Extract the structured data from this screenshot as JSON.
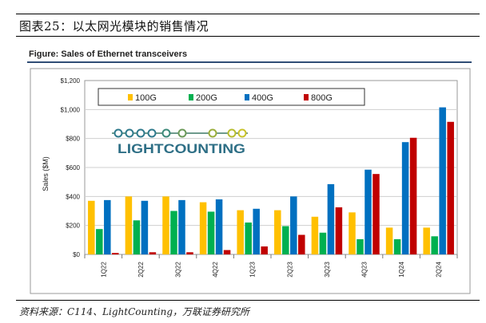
{
  "doc_title": "图表25：以太网光模块的销售情况",
  "figure_title": "Figure: Sales of Ethernet transceivers",
  "source": "资料来源：C114、LightCounting，万联证券研究所",
  "logo_text": "LIGHTCOUNTING",
  "chart_data": {
    "type": "bar",
    "title": "Sales of Ethernet transceivers",
    "xlabel": "",
    "ylabel": "Sales ($M)",
    "ylim": [
      0,
      1200
    ],
    "yticks": [
      0,
      200,
      400,
      600,
      800,
      1000,
      1200
    ],
    "ytick_labels": [
      "$0",
      "$200",
      "$400",
      "$600",
      "$800",
      "$1,000",
      "$1,200"
    ],
    "categories": [
      "1Q22",
      "2Q22",
      "3Q22",
      "4Q22",
      "1Q23",
      "2Q23",
      "3Q23",
      "4Q23",
      "1Q24",
      "2Q24"
    ],
    "legend_position": "top",
    "series": [
      {
        "name": "100G",
        "color": "#ffc000",
        "values": [
          370,
          400,
          400,
          360,
          305,
          305,
          260,
          290,
          185,
          185
        ]
      },
      {
        "name": "200G",
        "color": "#00b050",
        "values": [
          175,
          235,
          300,
          295,
          220,
          195,
          150,
          105,
          105,
          125
        ]
      },
      {
        "name": "400G",
        "color": "#0070c0",
        "values": [
          375,
          370,
          375,
          380,
          315,
          400,
          485,
          585,
          775,
          1015
        ]
      },
      {
        "name": "800G",
        "color": "#c00000",
        "values": [
          10,
          15,
          15,
          30,
          55,
          135,
          325,
          555,
          805,
          915
        ]
      }
    ]
  }
}
